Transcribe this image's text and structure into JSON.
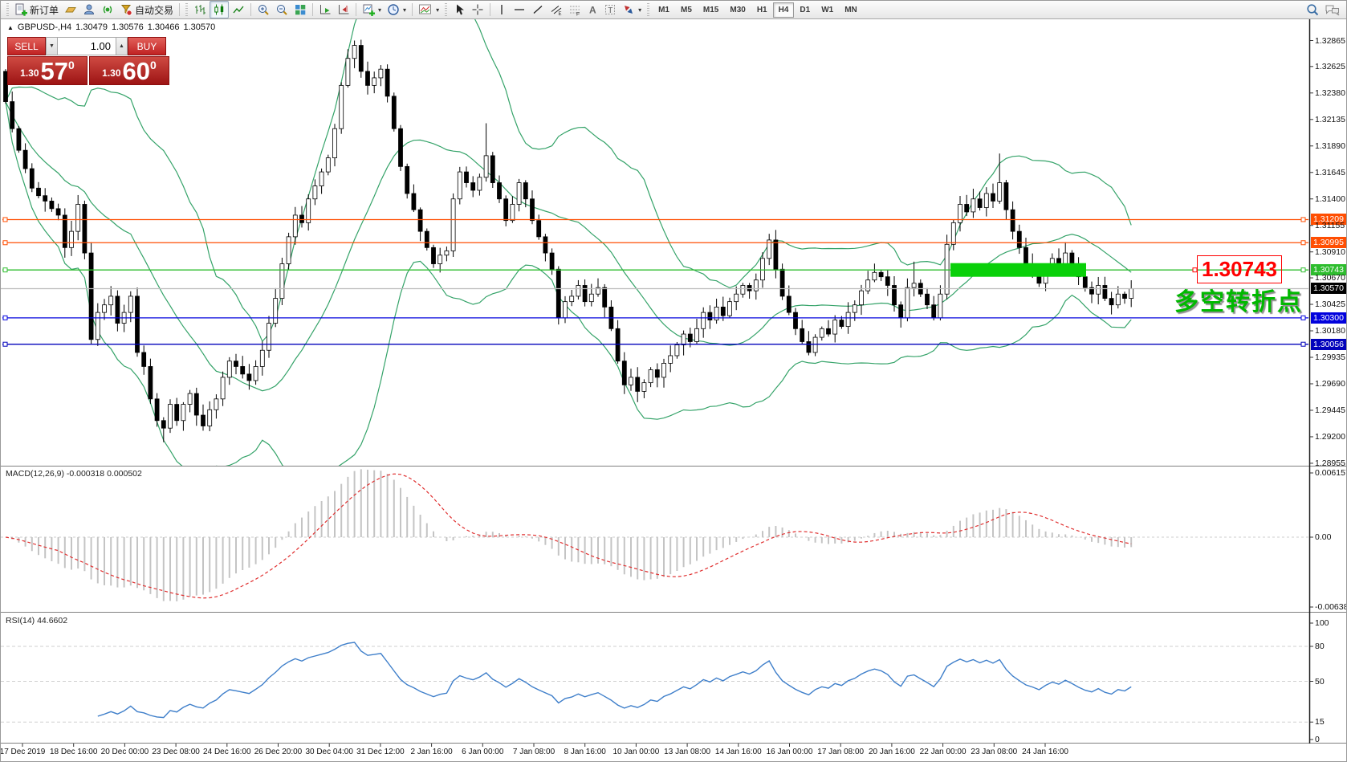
{
  "toolbar": {
    "new_order_label": "新订单",
    "auto_trading_label": "自动交易",
    "timeframes": {
      "items": [
        "M1",
        "M5",
        "M15",
        "M30",
        "H1",
        "H4",
        "D1",
        "W1",
        "MN"
      ],
      "active": "H4"
    }
  },
  "chart": {
    "header": {
      "symbol": "GBPUSD-,H4",
      "open": "1.30479",
      "high": "1.30576",
      "low": "1.30466",
      "close": "1.30570"
    },
    "one_click": {
      "sell_label": "SELL",
      "buy_label": "BUY",
      "volume": "1.00",
      "sell_small": "1.30",
      "sell_big": "57",
      "sell_sup": "0",
      "buy_small": "1.30",
      "buy_big": "60",
      "buy_sup": "0"
    }
  },
  "chart_data": {
    "type": "candlestick",
    "symbol": "GBPUSD",
    "timeframe": "H4",
    "first_open": 1.3258,
    "closes": [
      1.323,
      1.3205,
      1.3185,
      1.3168,
      1.315,
      1.3143,
      1.3138,
      1.3131,
      1.3125,
      1.3095,
      1.311,
      1.3135,
      1.309,
      1.301,
      1.3035,
      1.3042,
      1.305,
      1.3025,
      1.3035,
      1.305,
      1.2998,
      1.2985,
      1.2955,
      1.2935,
      1.2928,
      1.295,
      1.2935,
      1.295,
      1.296,
      1.294,
      1.293,
      1.2945,
      1.2955,
      1.2975,
      1.299,
      1.2985,
      1.2978,
      1.2972,
      1.2985,
      1.3,
      1.3025,
      1.3048,
      1.308,
      1.3105,
      1.3125,
      1.3118,
      1.314,
      1.3152,
      1.3165,
      1.3178,
      1.3205,
      1.3245,
      1.327,
      1.3282,
      1.3258,
      1.3245,
      1.3252,
      1.326,
      1.3235,
      1.3205,
      1.317,
      1.3145,
      1.313,
      1.311,
      1.3095,
      1.308,
      1.3088,
      1.3092,
      1.314,
      1.3165,
      1.3155,
      1.3148,
      1.316,
      1.318,
      1.3155,
      1.314,
      1.312,
      1.3135,
      1.3155,
      1.314,
      1.312,
      1.3105,
      1.309,
      1.3075,
      1.303,
      1.3045,
      1.305,
      1.306,
      1.3045,
      1.3052,
      1.3058,
      1.304,
      1.302,
      1.299,
      1.2968,
      1.2975,
      1.2962,
      1.297,
      1.2982,
      1.2975,
      1.2988,
      1.2995,
      1.3005,
      1.3015,
      1.3008,
      1.302,
      1.3035,
      1.3028,
      1.304,
      1.3032,
      1.3045,
      1.3052,
      1.306,
      1.3055,
      1.3065,
      1.3085,
      1.3102,
      1.3075,
      1.305,
      1.3035,
      1.302,
      1.3008,
      1.2998,
      1.3012,
      1.302,
      1.3015,
      1.3028,
      1.3022,
      1.3035,
      1.3042,
      1.3055,
      1.3065,
      1.3072,
      1.3068,
      1.306,
      1.3042,
      1.303,
      1.3058,
      1.3062,
      1.3052,
      1.3042,
      1.303,
      1.3052,
      1.3098,
      1.3118,
      1.3135,
      1.3128,
      1.314,
      1.3132,
      1.3145,
      1.3138,
      1.3155,
      1.313,
      1.311,
      1.3095,
      1.308,
      1.3072,
      1.3062,
      1.3075,
      1.3085,
      1.3078,
      1.309,
      1.308,
      1.3068,
      1.3058,
      1.3052,
      1.306,
      1.3048,
      1.3042,
      1.3052,
      1.3048,
      1.3057
    ],
    "wick_overrides": {
      "24": {
        "low": 1.2915
      },
      "53": {
        "high": 1.32865
      },
      "73": {
        "high": 1.321
      },
      "138": {
        "high": 1.3082
      },
      "151": {
        "high": 1.3182
      },
      "161": {
        "high": 1.31
      }
    },
    "bollinger": {
      "period": 20,
      "deviation": 2,
      "color": "#35a369"
    },
    "macd": {
      "label": "MACD(12,26,9) -0.000318 0.000502",
      "fast": 12,
      "slow": 26,
      "signal_period": 9,
      "hist_color": "#c4c4c4",
      "signal_color": "#e03030",
      "axis_labels": [
        "0.006157",
        "0.00",
        "-0.00638"
      ],
      "scale_max": 0.0064,
      "scale_min": -0.00685
    },
    "rsi": {
      "label": "RSI(14) 44.6602",
      "period": 14,
      "color": "#3f7fca",
      "levels": [
        80,
        50,
        15
      ],
      "axis_labels": [
        "100",
        "80",
        "50",
        "15",
        "0"
      ]
    },
    "price_axis_ticks": [
      "1.32865",
      "1.32625",
      "1.32380",
      "1.32135",
      "1.31890",
      "1.31645",
      "1.31400",
      "1.31155",
      "1.30910",
      "1.30670",
      "1.30425",
      "1.30180",
      "1.29935",
      "1.29690",
      "1.29445",
      "1.29200",
      "1.28955"
    ],
    "hlines": [
      {
        "price": 1.31209,
        "label": "1.31209",
        "color": "#ff4e02"
      },
      {
        "price": 1.30995,
        "label": "1.30995",
        "color": "#ff4e02"
      },
      {
        "price": 1.30743,
        "label": "1.30743",
        "color": "#2ebd2e"
      },
      {
        "price": 1.303,
        "label": "1.30300",
        "color": "#0202dd"
      },
      {
        "price": 1.30056,
        "label": "1.30056",
        "color": "#0202bb"
      }
    ],
    "current_price": {
      "price": 1.3057,
      "label": "1.30570",
      "line_color": "#bdbdbd",
      "tag_bg": "#000000"
    },
    "time_axis_labels": [
      "17 Dec 2019",
      "18 Dec 16:00",
      "20 Dec 00:00",
      "23 Dec 08:00",
      "24 Dec 16:00",
      "26 Dec 20:00",
      "30 Dec 04:00",
      "31 Dec 12:00",
      "2 Jan 16:00",
      "6 Jan 00:00",
      "7 Jan 08:00",
      "8 Jan 16:00",
      "10 Jan 00:00",
      "13 Jan 08:00",
      "14 Jan 16:00",
      "16 Jan 00:00",
      "17 Jan 08:00",
      "20 Jan 16:00",
      "22 Jan 00:00",
      "23 Jan 08:00",
      "24 Jan 16:00"
    ],
    "annotations": {
      "support_zone": {
        "price": 1.30743,
        "color": "#09d009"
      },
      "price_callout": {
        "text": "1.30743",
        "color": "#ff0000"
      },
      "note": {
        "text": "多空转折点",
        "color": "#00b800"
      }
    }
  }
}
